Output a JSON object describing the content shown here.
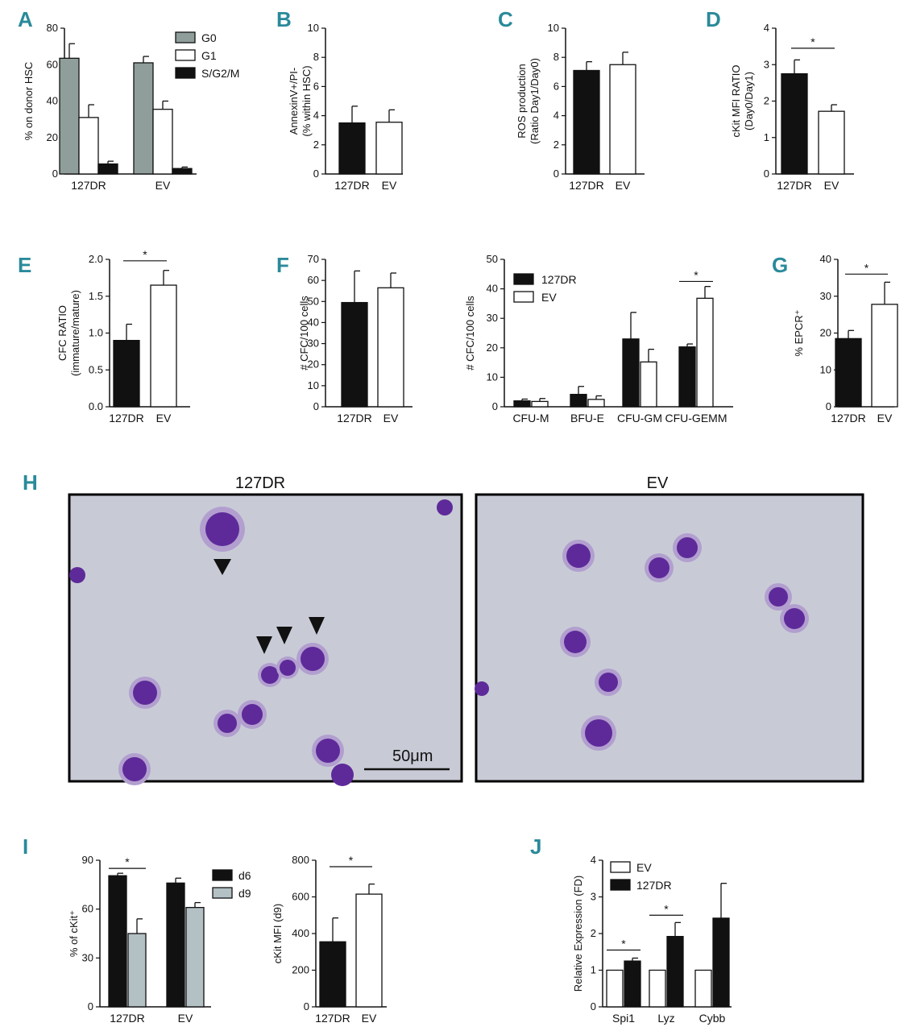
{
  "panels": {
    "A": {
      "letter": "A"
    },
    "B": {
      "letter": "B"
    },
    "C": {
      "letter": "C"
    },
    "D": {
      "letter": "D"
    },
    "E": {
      "letter": "E"
    },
    "F": {
      "letter": "F"
    },
    "G": {
      "letter": "G"
    },
    "H": {
      "letter": "H"
    },
    "I": {
      "letter": "I"
    },
    "J": {
      "letter": "J"
    }
  },
  "micrographs": {
    "left_title": "127DR",
    "right_title": "EV",
    "scale_bar_label": "50μm",
    "background_color": "#c8cbd6",
    "cell_color": "#6a2a9a"
  },
  "colors": {
    "panel_letter": "#2a8a9a",
    "black": "#111111",
    "white": "#ffffff",
    "gray_g0": "#8f9e9a",
    "gray_d9": "#b3c0c4"
  },
  "chart_data": [
    {
      "id": "A",
      "type": "bar",
      "categories": [
        "127DR",
        "EV"
      ],
      "series": [
        {
          "name": "G0",
          "values": [
            63.5,
            61
          ],
          "errors": [
            8,
            3.5
          ],
          "fill": "#8f9e9a"
        },
        {
          "name": "G1",
          "values": [
            31,
            35.5
          ],
          "errors": [
            7,
            4.5
          ],
          "fill": "#ffffff"
        },
        {
          "name": "S/G2/M",
          "values": [
            5.5,
            3
          ],
          "errors": [
            1.5,
            0.8
          ],
          "fill": "#111111"
        }
      ],
      "ylabel": "% on donor HSC",
      "ylim": [
        0,
        80
      ],
      "yticks": [
        0,
        20,
        40,
        60,
        80
      ],
      "legend": "top-right",
      "significance": []
    },
    {
      "id": "B",
      "type": "bar",
      "categories": [
        "127DR",
        "EV"
      ],
      "series": [
        {
          "values": [
            3.5,
            3.55
          ],
          "errors": [
            1.15,
            0.85
          ],
          "fills": [
            "#111111",
            "#ffffff"
          ]
        }
      ],
      "ylabel": [
        "AnnexinV+/PI-",
        "(% within HSC)"
      ],
      "ylim": [
        0,
        10
      ],
      "yticks": [
        0,
        2,
        4,
        6,
        8,
        10
      ],
      "significance": []
    },
    {
      "id": "C",
      "type": "bar",
      "categories": [
        "127DR",
        "EV"
      ],
      "series": [
        {
          "values": [
            7.1,
            7.5
          ],
          "errors": [
            0.6,
            0.85
          ],
          "fills": [
            "#111111",
            "#ffffff"
          ]
        }
      ],
      "ylabel": [
        "ROS production",
        "(Ratio Day1/Day0)"
      ],
      "ylim": [
        0,
        10
      ],
      "yticks": [
        0,
        2,
        4,
        6,
        8,
        10
      ],
      "significance": []
    },
    {
      "id": "D",
      "type": "bar",
      "categories": [
        "127DR",
        "EV"
      ],
      "series": [
        {
          "values": [
            2.75,
            1.72
          ],
          "errors": [
            0.38,
            0.18
          ],
          "fills": [
            "#111111",
            "#ffffff"
          ]
        }
      ],
      "ylabel": [
        "cKit MFI RATIO",
        "(Day0/Day1)"
      ],
      "ylim": [
        0,
        4
      ],
      "yticks": [
        0,
        1,
        2,
        3,
        4
      ],
      "significance": [
        {
          "from": 0,
          "to": 1,
          "y": 3.45,
          "label": "*"
        }
      ]
    },
    {
      "id": "E",
      "type": "bar",
      "categories": [
        "127DR",
        "EV"
      ],
      "series": [
        {
          "values": [
            0.9,
            1.65
          ],
          "errors": [
            0.22,
            0.2
          ],
          "fills": [
            "#111111",
            "#ffffff"
          ]
        }
      ],
      "ylabel": [
        "CFC RATIO",
        "(immature/mature)"
      ],
      "ylim": [
        0,
        2.0
      ],
      "yticks": [
        0.0,
        0.5,
        1.0,
        1.5,
        2.0
      ],
      "ytick_labels": [
        "0.0",
        "0.5",
        "1.0",
        "1.5",
        "2.0"
      ],
      "significance": [
        {
          "from": 0,
          "to": 1,
          "y": 1.98,
          "label": "*"
        }
      ]
    },
    {
      "id": "F1",
      "type": "bar",
      "categories": [
        "127DR",
        "EV"
      ],
      "series": [
        {
          "values": [
            49.5,
            56.5
          ],
          "errors": [
            15,
            7
          ],
          "fills": [
            "#111111",
            "#ffffff"
          ]
        }
      ],
      "ylabel": "# CFC/100 cells",
      "ylim": [
        0,
        70
      ],
      "yticks": [
        0,
        10,
        20,
        30,
        40,
        50,
        60,
        70
      ],
      "significance": []
    },
    {
      "id": "F2",
      "type": "bar",
      "categories": [
        "CFU-M",
        "BFU-E",
        "CFU-GM",
        "CFU-GEMM"
      ],
      "series": [
        {
          "name": "127DR",
          "values": [
            2,
            4.2,
            23,
            20.3
          ],
          "errors": [
            0.6,
            2.7,
            9,
            1
          ],
          "fill": "#111111"
        },
        {
          "name": "EV",
          "values": [
            1.8,
            2.5,
            15.2,
            36.8
          ],
          "errors": [
            1,
            1.2,
            4.3,
            4
          ]
        }
      ],
      "ylabel": "# CFC/100 cells",
      "ylim": [
        0,
        50
      ],
      "yticks": [
        0,
        10,
        20,
        30,
        40,
        50
      ],
      "legend": "top-left",
      "significance": [
        {
          "group": 3,
          "y": 42.5,
          "label": "*"
        }
      ]
    },
    {
      "id": "G",
      "type": "bar",
      "categories": [
        "127DR",
        "EV"
      ],
      "series": [
        {
          "values": [
            18.5,
            27.8
          ],
          "errors": [
            2.2,
            6
          ],
          "fills": [
            "#111111",
            "#ffffff"
          ]
        }
      ],
      "ylabel": "% EPCR⁺",
      "ylim": [
        0,
        40
      ],
      "yticks": [
        0,
        10,
        20,
        30,
        40
      ],
      "significance": [
        {
          "from": 0,
          "to": 1,
          "y": 36,
          "label": "*"
        }
      ]
    },
    {
      "id": "I1",
      "type": "bar",
      "categories": [
        "127DR",
        "EV"
      ],
      "series": [
        {
          "name": "d6",
          "values": [
            80.5,
            76
          ],
          "errors": [
            1.5,
            3
          ],
          "fill": "#111111"
        },
        {
          "name": "d9",
          "values": [
            45,
            61
          ],
          "errors": [
            9,
            3
          ],
          "fill": "#b3c0c4"
        }
      ],
      "ylabel": "% of cKit⁺",
      "ylim": [
        0,
        90
      ],
      "yticks": [
        0,
        30,
        60,
        90
      ],
      "legend": "top-right",
      "significance": [
        {
          "group": 0,
          "y": 85,
          "label": "*"
        }
      ]
    },
    {
      "id": "I2",
      "type": "bar",
      "categories": [
        "127DR",
        "EV"
      ],
      "series": [
        {
          "values": [
            355,
            615
          ],
          "errors": [
            130,
            55
          ],
          "fills": [
            "#111111",
            "#ffffff"
          ]
        }
      ],
      "ylabel": "cKit MFI (d9)",
      "ylim": [
        0,
        800
      ],
      "yticks": [
        0,
        200,
        400,
        600,
        800
      ],
      "significance": [
        {
          "from": 0,
          "to": 1,
          "y": 765,
          "label": "*"
        }
      ]
    },
    {
      "id": "J",
      "type": "bar",
      "categories": [
        "Spi1",
        "Lyz",
        "Cybb"
      ],
      "series": [
        {
          "name": "EV",
          "values": [
            1,
            1,
            1
          ],
          "errors": [
            0,
            0,
            0
          ]
        },
        {
          "name": "127DR",
          "values": [
            1.25,
            1.92,
            2.42
          ],
          "errors": [
            0.08,
            0.38,
            0.95
          ],
          "fill": "#111111"
        }
      ],
      "ylabel": "Relative Expression (FD)",
      "ylim": [
        0,
        4
      ],
      "yticks": [
        0,
        1,
        2,
        3,
        4
      ],
      "legend": "top-left",
      "significance": [
        {
          "group": 0,
          "y": 1.55,
          "label": "*"
        },
        {
          "group": 1,
          "y": 2.5,
          "label": "*"
        }
      ]
    }
  ]
}
